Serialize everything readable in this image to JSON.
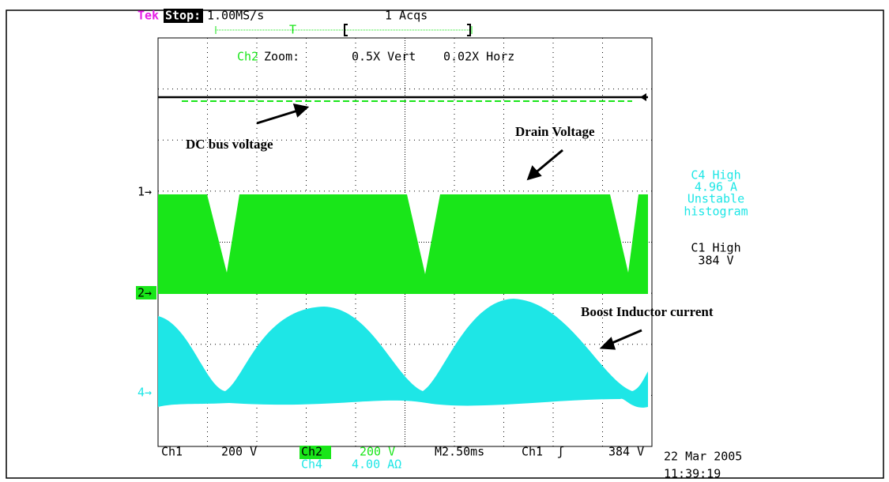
{
  "header": {
    "brand": "Tek",
    "state": "Stop:",
    "sample_rate": "1.00MS/s",
    "acquisitions": "1 Acqs",
    "trigger_mark": "T",
    "zoom_channel": "Ch2",
    "zoom_label": "Zoom:",
    "zoom_vert": "0.5X Vert",
    "zoom_horz": "0.02X Horz"
  },
  "annotations": {
    "dc_bus": "DC bus voltage",
    "drain": "Drain Voltage",
    "boost": "Boost Inductor current"
  },
  "measurements": {
    "c4_title": "C4 High",
    "c4_value": "4.96 A",
    "c4_status_1": "Unstable",
    "c4_status_2": "histogram",
    "c1_title": "C1 High",
    "c1_value": "384 V"
  },
  "markers": {
    "ch1": "1→",
    "ch2": "2→",
    "ch4": "4→"
  },
  "footer": {
    "ch1": "Ch1",
    "ch1_scale": "200 V",
    "ch2": "Ch2",
    "ch2_scale": "200 V",
    "ch4": "Ch4",
    "ch4_scale": "4.00 AΩ",
    "timebase": "M2.50ms",
    "trigger_source": "Ch1",
    "trigger_slope": "ʃ",
    "trigger_level": "384 V",
    "date": "22 Mar 2005",
    "time": "11:39:19"
  }
}
